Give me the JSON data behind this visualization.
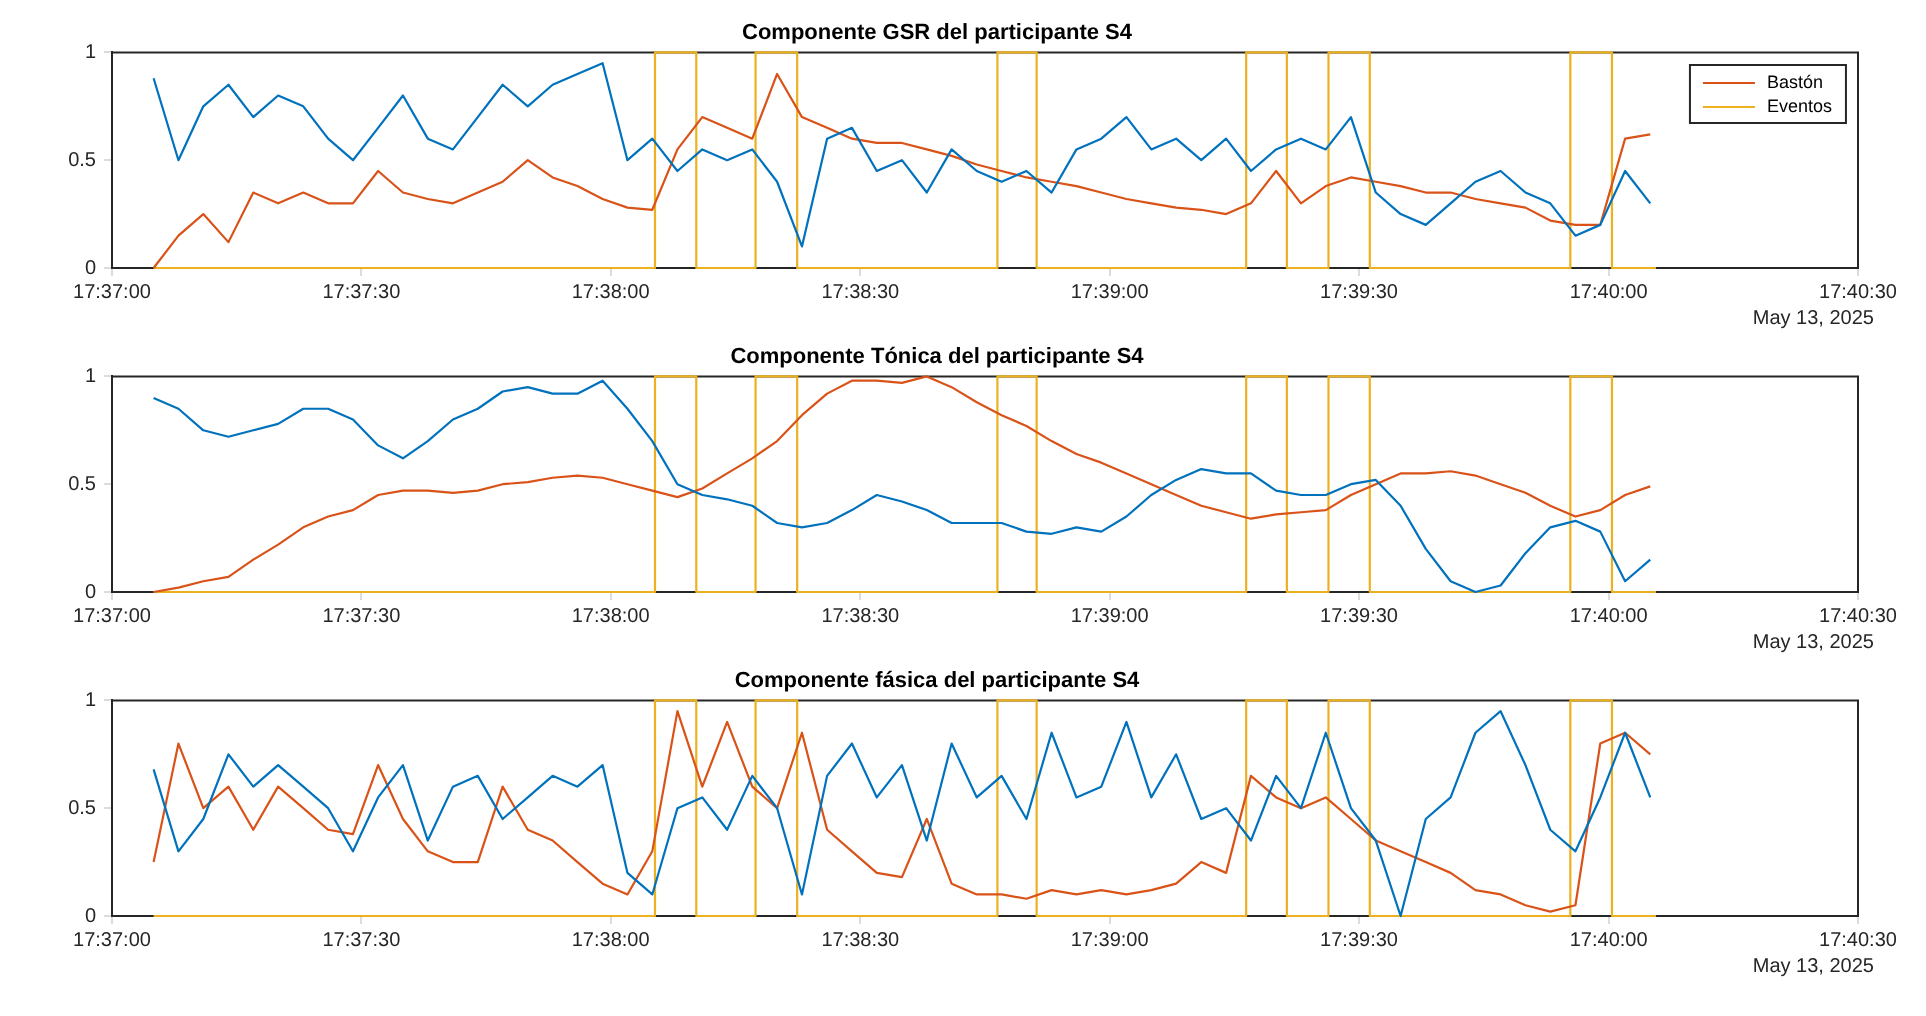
{
  "chart_data": [
    {
      "type": "line",
      "title": "Componente GSR del participante S4",
      "annotations": [
        "May 13, 2025"
      ],
      "legend": "top right",
      "marker": "none",
      "line_style": "solid",
      "x": [
        17.61806,
        17.61889,
        17.61972,
        17.62056,
        17.62139,
        17.62222,
        17.62306,
        17.62389,
        17.62472,
        17.62556,
        17.62639,
        17.62722,
        17.62806,
        17.62889,
        17.62972,
        17.63056,
        17.63139,
        17.63222,
        17.63306,
        17.63389,
        17.63472,
        17.63556,
        17.63639,
        17.63722,
        17.63806,
        17.63889,
        17.63972,
        17.64056,
        17.64139,
        17.64222,
        17.64306,
        17.64389,
        17.64472,
        17.64556,
        17.64639,
        17.64722,
        17.64806,
        17.64889,
        17.64972,
        17.65056,
        17.65139,
        17.65222,
        17.65306,
        17.65389,
        17.65472,
        17.65556,
        17.65639,
        17.65722,
        17.65806,
        17.65889,
        17.65972,
        17.66056,
        17.66139,
        17.66222,
        17.66306,
        17.66389,
        17.66472,
        17.66556,
        17.66639,
        17.66722,
        17.66806
      ],
      "xlim": [
        17.61667,
        17.675
      ],
      "xticks": [
        {
          "value": 17.61667,
          "label": "17:37:00"
        },
        {
          "value": 17.625,
          "label": "17:37:30"
        },
        {
          "value": 17.63333,
          "label": "17:38:00"
        },
        {
          "value": 17.64167,
          "label": "17:38:30"
        },
        {
          "value": 17.65,
          "label": "17:39:00"
        },
        {
          "value": 17.65833,
          "label": "17:39:30"
        },
        {
          "value": 17.66667,
          "label": "17:40:00"
        },
        {
          "value": 17.675,
          "label": "17:40:30"
        }
      ],
      "ylim": [
        0,
        1
      ],
      "yticks": [
        0,
        0.5,
        1
      ],
      "series": [
        {
          "color": "#0072bd",
          "values": [
            0.88,
            0.5,
            0.75,
            0.85,
            0.7,
            0.8,
            0.75,
            0.6,
            0.5,
            0.65,
            0.8,
            0.6,
            0.55,
            0.7,
            0.85,
            0.75,
            0.85,
            0.9,
            0.95,
            0.5,
            0.6,
            0.45,
            0.55,
            0.5,
            0.55,
            0.4,
            0.1,
            0.6,
            0.65,
            0.45,
            0.5,
            0.35,
            0.55,
            0.45,
            0.4,
            0.45,
            0.35,
            0.55,
            0.6,
            0.7,
            0.55,
            0.6,
            0.5,
            0.6,
            0.45,
            0.55,
            0.6,
            0.55,
            0.7,
            0.35,
            0.25,
            0.2,
            0.3,
            0.4,
            0.45,
            0.35,
            0.3,
            0.15,
            0.2,
            0.45,
            0.3
          ]
        },
        {
          "name": "Bastón",
          "color": "#d95319",
          "values": [
            0,
            0.15,
            0.25,
            0.12,
            0.35,
            0.3,
            0.35,
            0.3,
            0.3,
            0.45,
            0.35,
            0.32,
            0.3,
            0.35,
            0.4,
            0.5,
            0.42,
            0.38,
            0.32,
            0.28,
            0.27,
            0.55,
            0.7,
            0.65,
            0.6,
            0.9,
            0.7,
            0.65,
            0.6,
            0.58,
            0.58,
            0.55,
            0.52,
            0.48,
            0.45,
            0.42,
            0.4,
            0.38,
            0.35,
            0.32,
            0.3,
            0.28,
            0.27,
            0.25,
            0.3,
            0.45,
            0.3,
            0.38,
            0.42,
            0.4,
            0.38,
            0.35,
            0.35,
            0.32,
            0.3,
            0.28,
            0.22,
            0.2,
            0.2,
            0.6,
            0.62
          ]
        },
        {
          "name": "Eventos",
          "color": "#edb120",
          "x": [
            17.61806,
            17.63481,
            17.63481,
            17.63619,
            17.63619,
            17.63817,
            17.63817,
            17.63956,
            17.63956,
            17.64625,
            17.64625,
            17.64756,
            17.64756,
            17.65456,
            17.65456,
            17.65592,
            17.65592,
            17.65731,
            17.65731,
            17.65869,
            17.65869,
            17.66539,
            17.66539,
            17.66678,
            17.66678,
            17.66825
          ],
          "values": [
            0,
            0,
            1,
            1,
            0,
            0,
            1,
            1,
            0,
            0,
            1,
            1,
            0,
            0,
            1,
            1,
            0,
            0,
            1,
            1,
            0,
            0,
            1,
            1,
            0,
            0
          ]
        }
      ]
    },
    {
      "type": "line",
      "title": "Componente Tónica del participante S4",
      "annotations": [
        "May 13, 2025"
      ],
      "marker": "none",
      "line_style": "solid",
      "x": [
        17.61806,
        17.61889,
        17.61972,
        17.62056,
        17.62139,
        17.62222,
        17.62306,
        17.62389,
        17.62472,
        17.62556,
        17.62639,
        17.62722,
        17.62806,
        17.62889,
        17.62972,
        17.63056,
        17.63139,
        17.63222,
        17.63306,
        17.63389,
        17.63472,
        17.63556,
        17.63639,
        17.63722,
        17.63806,
        17.63889,
        17.63972,
        17.64056,
        17.64139,
        17.64222,
        17.64306,
        17.64389,
        17.64472,
        17.64556,
        17.64639,
        17.64722,
        17.64806,
        17.64889,
        17.64972,
        17.65056,
        17.65139,
        17.65222,
        17.65306,
        17.65389,
        17.65472,
        17.65556,
        17.65639,
        17.65722,
        17.65806,
        17.65889,
        17.65972,
        17.66056,
        17.66139,
        17.66222,
        17.66306,
        17.66389,
        17.66472,
        17.66556,
        17.66639,
        17.66722,
        17.66806
      ],
      "xlim": [
        17.61667,
        17.675
      ],
      "xticks": [
        {
          "value": 17.61667,
          "label": "17:37:00"
        },
        {
          "value": 17.625,
          "label": "17:37:30"
        },
        {
          "value": 17.63333,
          "label": "17:38:00"
        },
        {
          "value": 17.64167,
          "label": "17:38:30"
        },
        {
          "value": 17.65,
          "label": "17:39:00"
        },
        {
          "value": 17.65833,
          "label": "17:39:30"
        },
        {
          "value": 17.66667,
          "label": "17:40:00"
        },
        {
          "value": 17.675,
          "label": "17:40:30"
        }
      ],
      "ylim": [
        0,
        1
      ],
      "yticks": [
        0,
        0.5,
        1
      ],
      "series": [
        {
          "color": "#0072bd",
          "values": [
            0.9,
            0.85,
            0.75,
            0.72,
            0.75,
            0.78,
            0.85,
            0.85,
            0.8,
            0.68,
            0.62,
            0.7,
            0.8,
            0.85,
            0.93,
            0.95,
            0.92,
            0.92,
            0.98,
            0.85,
            0.7,
            0.5,
            0.45,
            0.43,
            0.4,
            0.32,
            0.3,
            0.32,
            0.38,
            0.45,
            0.42,
            0.38,
            0.32,
            0.32,
            0.32,
            0.28,
            0.27,
            0.3,
            0.28,
            0.35,
            0.45,
            0.52,
            0.57,
            0.55,
            0.55,
            0.47,
            0.45,
            0.45,
            0.5,
            0.52,
            0.4,
            0.2,
            0.05,
            0,
            0.03,
            0.18,
            0.3,
            0.33,
            0.28,
            0.05,
            0.15
          ]
        },
        {
          "color": "#d95319",
          "values": [
            0,
            0.02,
            0.05,
            0.07,
            0.15,
            0.22,
            0.3,
            0.35,
            0.38,
            0.45,
            0.47,
            0.47,
            0.46,
            0.47,
            0.5,
            0.51,
            0.53,
            0.54,
            0.53,
            0.5,
            0.47,
            0.44,
            0.48,
            0.55,
            0.62,
            0.7,
            0.82,
            0.92,
            0.98,
            0.98,
            0.97,
            1,
            0.95,
            0.88,
            0.82,
            0.77,
            0.7,
            0.64,
            0.6,
            0.55,
            0.5,
            0.45,
            0.4,
            0.37,
            0.34,
            0.36,
            0.37,
            0.38,
            0.45,
            0.5,
            0.55,
            0.55,
            0.56,
            0.54,
            0.5,
            0.46,
            0.4,
            0.35,
            0.38,
            0.45,
            0.49
          ]
        },
        {
          "color": "#edb120",
          "x": [
            17.61806,
            17.63481,
            17.63481,
            17.63619,
            17.63619,
            17.63817,
            17.63817,
            17.63956,
            17.63956,
            17.64625,
            17.64625,
            17.64756,
            17.64756,
            17.65456,
            17.65456,
            17.65592,
            17.65592,
            17.65731,
            17.65731,
            17.65869,
            17.65869,
            17.66539,
            17.66539,
            17.66678,
            17.66678,
            17.66825
          ],
          "values": [
            0,
            0,
            1,
            1,
            0,
            0,
            1,
            1,
            0,
            0,
            1,
            1,
            0,
            0,
            1,
            1,
            0,
            0,
            1,
            1,
            0,
            0,
            1,
            1,
            0,
            0
          ]
        }
      ]
    },
    {
      "type": "line",
      "title": "Componente fásica del participante S4",
      "annotations": [
        "May 13, 2025"
      ],
      "marker": "none",
      "line_style": "solid",
      "x": [
        17.61806,
        17.61889,
        17.61972,
        17.62056,
        17.62139,
        17.62222,
        17.62306,
        17.62389,
        17.62472,
        17.62556,
        17.62639,
        17.62722,
        17.62806,
        17.62889,
        17.62972,
        17.63056,
        17.63139,
        17.63222,
        17.63306,
        17.63389,
        17.63472,
        17.63556,
        17.63639,
        17.63722,
        17.63806,
        17.63889,
        17.63972,
        17.64056,
        17.64139,
        17.64222,
        17.64306,
        17.64389,
        17.64472,
        17.64556,
        17.64639,
        17.64722,
        17.64806,
        17.64889,
        17.64972,
        17.65056,
        17.65139,
        17.65222,
        17.65306,
        17.65389,
        17.65472,
        17.65556,
        17.65639,
        17.65722,
        17.65806,
        17.65889,
        17.65972,
        17.66056,
        17.66139,
        17.66222,
        17.66306,
        17.66389,
        17.66472,
        17.66556,
        17.66639,
        17.66722,
        17.66806
      ],
      "xlim": [
        17.61667,
        17.675
      ],
      "xticks": [
        {
          "value": 17.61667,
          "label": "17:37:00"
        },
        {
          "value": 17.625,
          "label": "17:37:30"
        },
        {
          "value": 17.63333,
          "label": "17:38:00"
        },
        {
          "value": 17.64167,
          "label": "17:38:30"
        },
        {
          "value": 17.65,
          "label": "17:39:00"
        },
        {
          "value": 17.65833,
          "label": "17:39:30"
        },
        {
          "value": 17.66667,
          "label": "17:40:00"
        },
        {
          "value": 17.675,
          "label": "17:40:30"
        }
      ],
      "ylim": [
        0,
        1
      ],
      "yticks": [
        0,
        0.5,
        1
      ],
      "series": [
        {
          "color": "#0072bd",
          "values": [
            0.68,
            0.3,
            0.45,
            0.75,
            0.6,
            0.7,
            0.6,
            0.5,
            0.3,
            0.55,
            0.7,
            0.35,
            0.6,
            0.65,
            0.45,
            0.55,
            0.65,
            0.6,
            0.7,
            0.2,
            0.1,
            0.5,
            0.55,
            0.4,
            0.65,
            0.5,
            0.1,
            0.65,
            0.8,
            0.55,
            0.7,
            0.35,
            0.8,
            0.55,
            0.65,
            0.45,
            0.85,
            0.55,
            0.6,
            0.9,
            0.55,
            0.75,
            0.45,
            0.5,
            0.35,
            0.65,
            0.5,
            0.85,
            0.5,
            0.35,
            0,
            0.45,
            0.55,
            0.85,
            0.95,
            0.7,
            0.4,
            0.3,
            0.55,
            0.85,
            0.55
          ]
        },
        {
          "color": "#d95319",
          "values": [
            0.25,
            0.8,
            0.5,
            0.6,
            0.4,
            0.6,
            0.5,
            0.4,
            0.38,
            0.7,
            0.45,
            0.3,
            0.25,
            0.25,
            0.6,
            0.4,
            0.35,
            0.25,
            0.15,
            0.1,
            0.3,
            0.95,
            0.6,
            0.9,
            0.6,
            0.5,
            0.85,
            0.4,
            0.3,
            0.2,
            0.18,
            0.45,
            0.15,
            0.1,
            0.1,
            0.08,
            0.12,
            0.1,
            0.12,
            0.1,
            0.12,
            0.15,
            0.25,
            0.2,
            0.65,
            0.55,
            0.5,
            0.55,
            0.45,
            0.35,
            0.3,
            0.25,
            0.2,
            0.12,
            0.1,
            0.05,
            0.02,
            0.05,
            0.8,
            0.85,
            0.75
          ]
        },
        {
          "color": "#edb120",
          "x": [
            17.61806,
            17.63481,
            17.63481,
            17.63619,
            17.63619,
            17.63817,
            17.63817,
            17.63956,
            17.63956,
            17.64625,
            17.64625,
            17.64756,
            17.64756,
            17.65456,
            17.65456,
            17.65592,
            17.65592,
            17.65731,
            17.65731,
            17.65869,
            17.65869,
            17.66539,
            17.66539,
            17.66678,
            17.66678,
            17.66825
          ],
          "values": [
            0,
            0,
            1,
            1,
            0,
            0,
            1,
            1,
            0,
            0,
            1,
            1,
            0,
            0,
            1,
            1,
            0,
            0,
            1,
            1,
            0,
            0,
            1,
            1,
            0,
            0
          ]
        }
      ]
    }
  ]
}
